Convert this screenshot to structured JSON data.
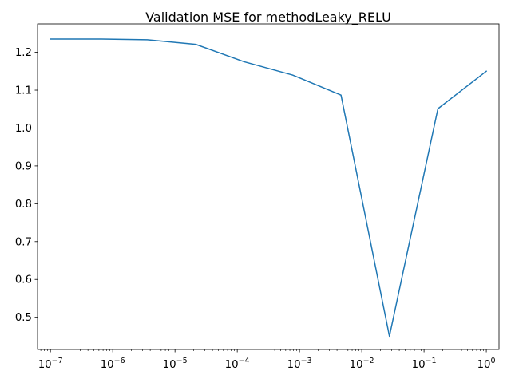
{
  "chart_data": {
    "type": "line",
    "title": "Validation MSE for methodLeaky_RELU",
    "xlabel": "",
    "ylabel": "",
    "xscale": "log",
    "xlim": [
      6.2e-08,
      1.6
    ],
    "ylim": [
      0.415,
      1.275
    ],
    "grid": false,
    "x_ticks": [
      1e-07,
      1e-06,
      1e-05,
      0.0001,
      0.001,
      0.01,
      0.1,
      1
    ],
    "x_tick_labels": [
      {
        "base": "10",
        "exp": "−7"
      },
      {
        "base": "10",
        "exp": "−6"
      },
      {
        "base": "10",
        "exp": "−5"
      },
      {
        "base": "10",
        "exp": "−4"
      },
      {
        "base": "10",
        "exp": "−3"
      },
      {
        "base": "10",
        "exp": "−2"
      },
      {
        "base": "10",
        "exp": "−1"
      },
      {
        "base": "10",
        "exp": "0"
      }
    ],
    "y_ticks": [
      0.5,
      0.6,
      0.7,
      0.8,
      0.9,
      1.0,
      1.1,
      1.2
    ],
    "y_tick_labels": [
      "0.5",
      "0.6",
      "0.7",
      "0.8",
      "0.9",
      "1.0",
      "1.1",
      "1.2"
    ],
    "series": [
      {
        "color": "#1f77b4",
        "x": [
          1e-07,
          5.99e-07,
          3.59e-06,
          2.15e-05,
          0.000129,
          0.000774,
          0.00464,
          0.0278,
          0.167,
          1
        ],
        "y": [
          1.235,
          1.235,
          1.233,
          1.221,
          1.175,
          1.14,
          1.087,
          0.45,
          1.051,
          1.15
        ]
      }
    ]
  }
}
